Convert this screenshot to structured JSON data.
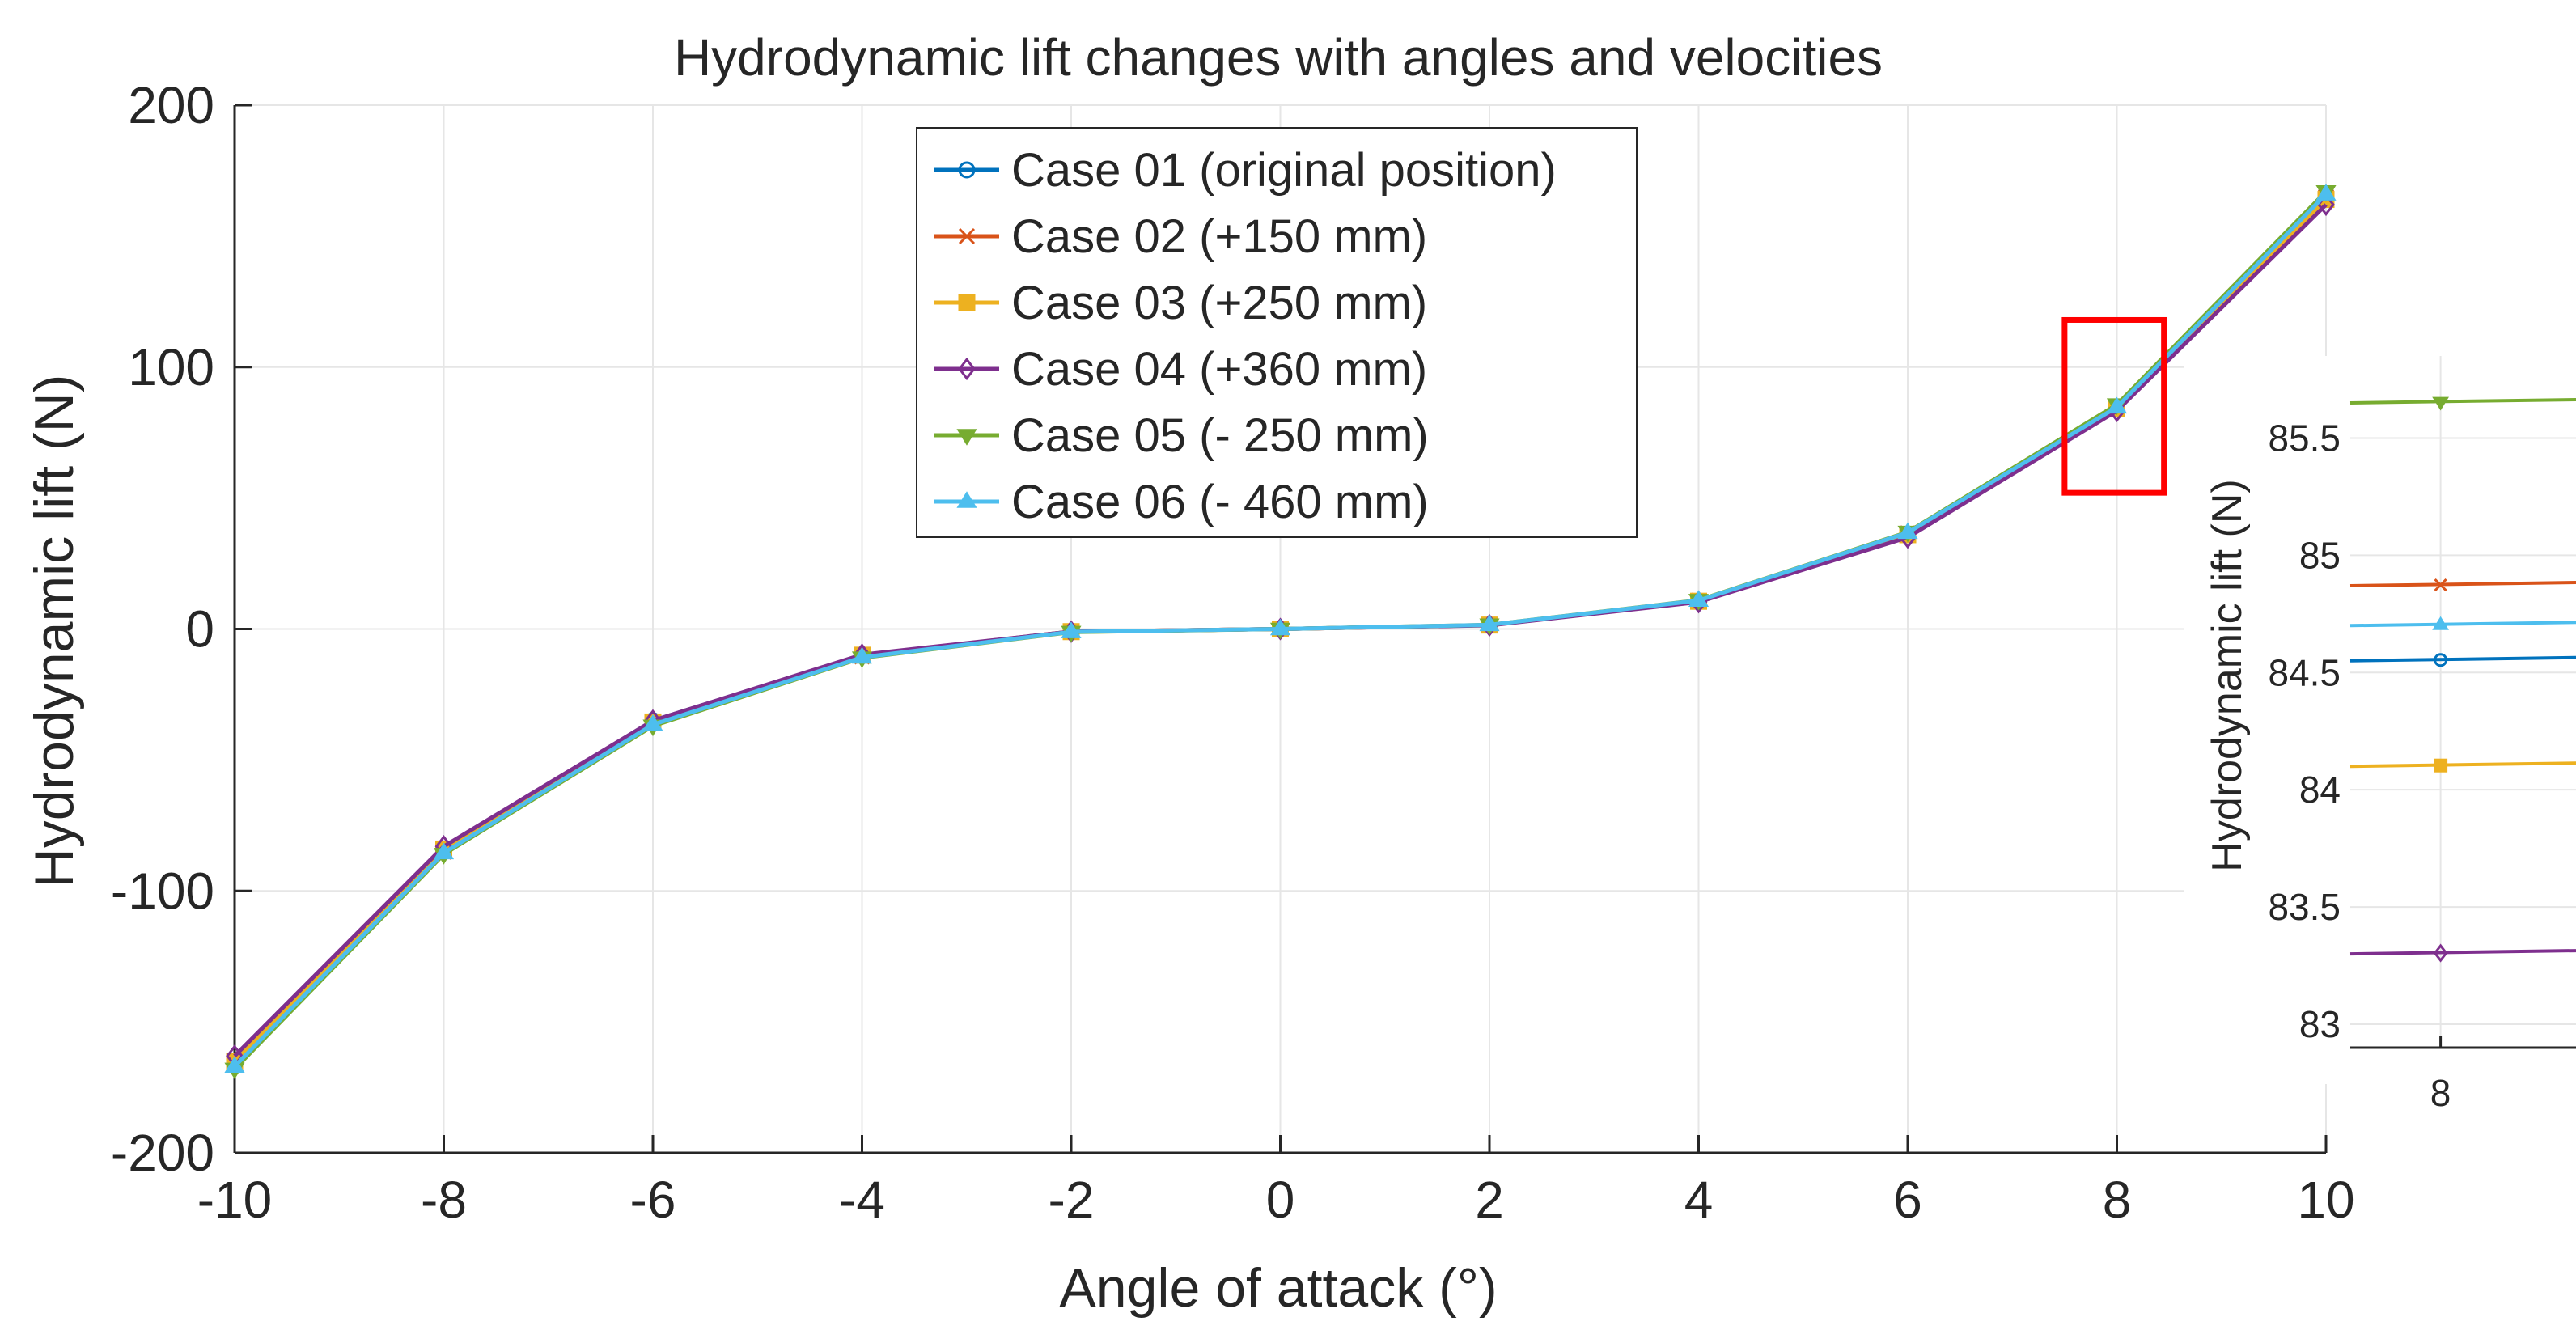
{
  "chart_data": {
    "type": "line",
    "title": "Hydrodynamic lift changes with angles and velocities",
    "xlabel": "Angle of attack (°)",
    "ylabel": "Hydrodynamic lift (N)",
    "xlim": [
      -10,
      10
    ],
    "ylim": [
      -200,
      200
    ],
    "x_ticks": [
      "-10",
      "-8",
      "-6",
      "-4",
      "-2",
      "0",
      "2",
      "4",
      "6",
      "8",
      "10"
    ],
    "y_ticks": [
      "-200",
      "-100",
      "0",
      "100",
      "200"
    ],
    "grid": true,
    "legend_location": "top-center",
    "x": [
      -10,
      -8,
      -6,
      -4,
      -2,
      0,
      2,
      4,
      6,
      8,
      10
    ],
    "series": [
      {
        "name": "Case 01 (original position)",
        "color": "#0072BD",
        "marker": "circle",
        "values": [
          -165,
          -84,
          -35,
          -10,
          -1,
          0,
          1.5,
          10.5,
          36,
          84.55,
          164
        ]
      },
      {
        "name": "Case 02 (+150 mm)",
        "color": "#D95319",
        "marker": "x",
        "values": [
          -166,
          -85,
          -36,
          -10.5,
          -1,
          0,
          1.5,
          10.8,
          36.5,
          84.87,
          165
        ]
      },
      {
        "name": "Case 03 (+250 mm)",
        "color": "#EDB120",
        "marker": "square",
        "values": [
          -165,
          -84,
          -35.5,
          -10,
          -1,
          0,
          1.5,
          10.6,
          36,
          84.1,
          164
        ]
      },
      {
        "name": "Case 04 (+360 mm)",
        "color": "#7E2F8E",
        "marker": "diamond",
        "values": [
          -163,
          -83,
          -35,
          -9.8,
          -1,
          0,
          1.4,
          10.3,
          35,
          83.3,
          162
        ]
      },
      {
        "name": "Case 05 (- 250 mm)",
        "color": "#77AC30",
        "marker": "triangle-down",
        "values": [
          -168,
          -86,
          -37,
          -11,
          -1.2,
          0,
          1.6,
          11,
          37,
          85.65,
          167
        ]
      },
      {
        "name": "Case 06 (- 460 mm)",
        "color": "#4DBEEE",
        "marker": "triangle-up",
        "values": [
          -167,
          -85.5,
          -36.5,
          -10.8,
          -1.1,
          0,
          1.6,
          10.9,
          36.8,
          84.7,
          166
        ]
      }
    ],
    "inset": {
      "ylabel": "Hydrodynamic lift (N)",
      "xlim": [
        7.9,
        8.15
      ],
      "ylim": [
        82.9,
        85.85
      ],
      "x_ticks": [
        "8"
      ],
      "y_ticks": [
        "83",
        "83.5",
        "84",
        "84.5",
        "85",
        "85.5"
      ],
      "zoom_x": 8
    },
    "highlight_box": {
      "color": "#FF0000",
      "x_range": [
        7.5,
        8.45
      ],
      "y_range": [
        52,
        118
      ]
    }
  }
}
